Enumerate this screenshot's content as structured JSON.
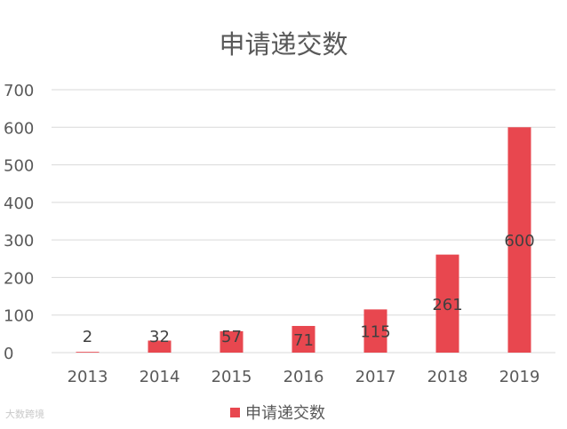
{
  "chart_data": {
    "type": "bar",
    "title": "申请递交数",
    "categories": [
      "2013",
      "2014",
      "2015",
      "2016",
      "2017",
      "2018",
      "2019"
    ],
    "series": [
      {
        "name": "申请递交数",
        "values": [
          2,
          32,
          57,
          71,
          115,
          261,
          600
        ]
      }
    ],
    "data_labels": [
      "2",
      "32",
      "57",
      "71",
      "115",
      "261",
      "600"
    ],
    "ylim": [
      0,
      700
    ],
    "yticks": [
      0,
      100,
      200,
      300,
      400,
      500,
      600,
      700
    ],
    "grid": true,
    "legend": "bottom",
    "colors": {
      "bar": "#e8474f",
      "grid": "#d9d9d9",
      "text": "#595959"
    }
  },
  "watermark": "大数跨境"
}
